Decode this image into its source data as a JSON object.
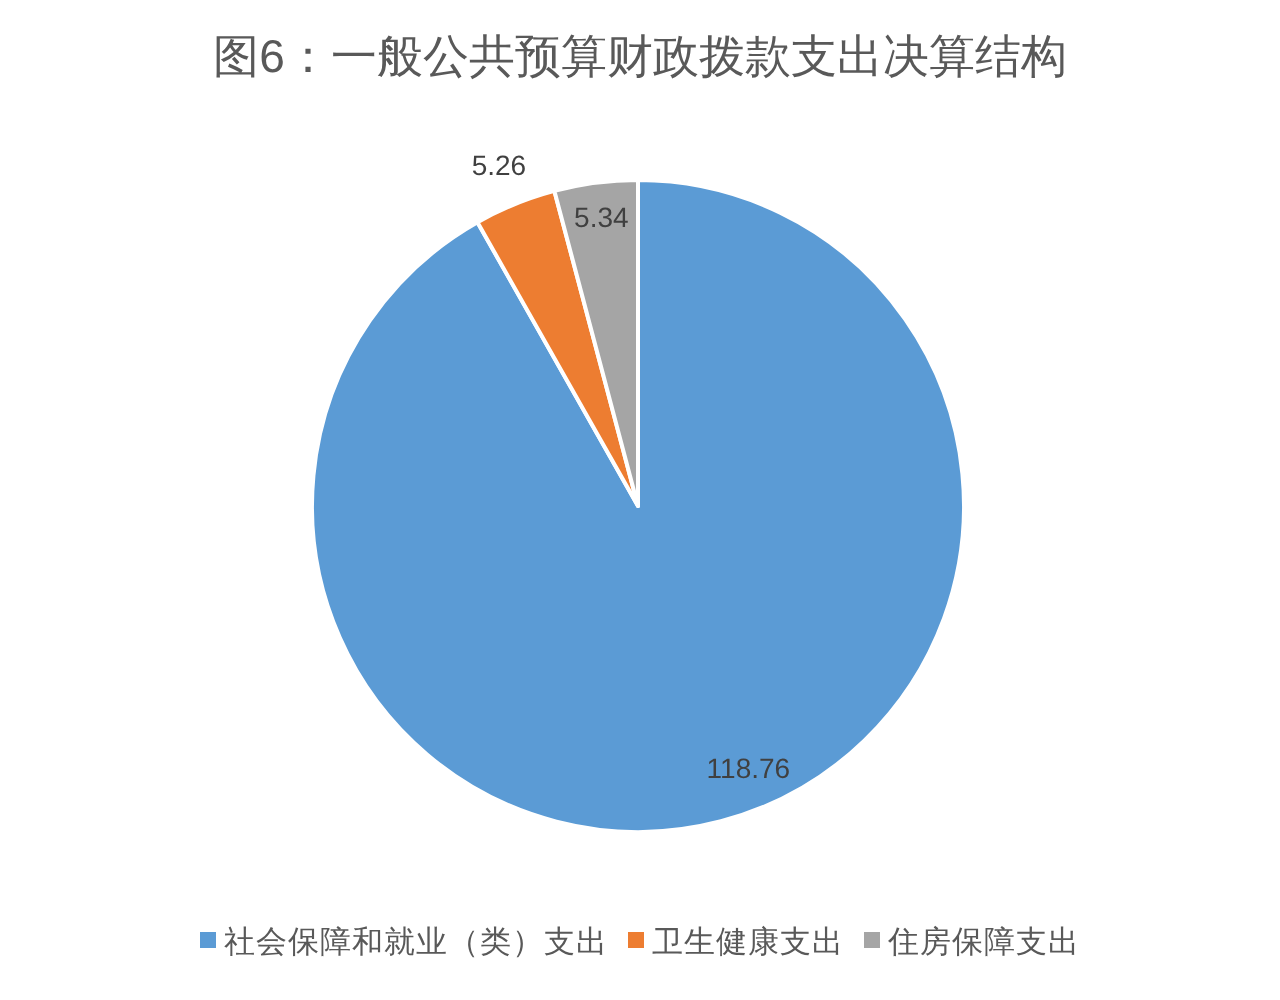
{
  "chart_data": {
    "type": "pie",
    "title": "图6：一般公共预算财政拨款支出决算结构",
    "categories": [
      "社会保障和就业（类）支出",
      "卫生健康支出",
      "住房保障支出"
    ],
    "values": [
      118.76,
      5.26,
      5.34
    ],
    "colors": [
      "#5b9bd5",
      "#ed7d31",
      "#a5a5a5"
    ],
    "data_labels": true,
    "legend": "bottom"
  }
}
